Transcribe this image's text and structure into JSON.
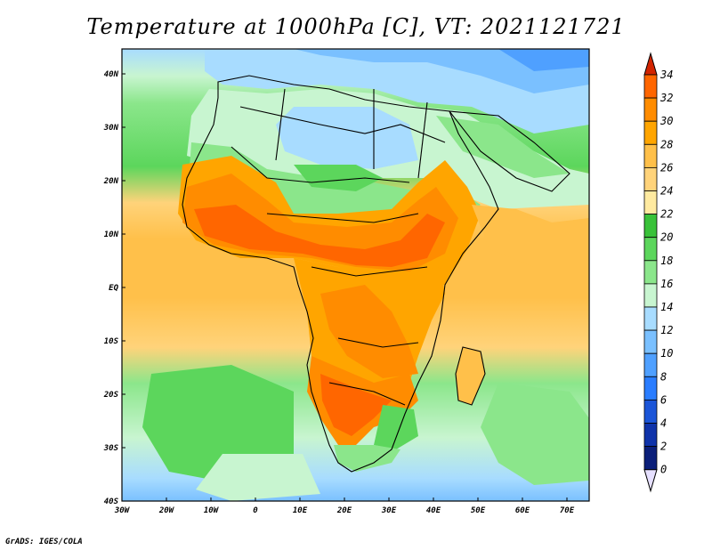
{
  "title": "Temperature at 1000hPa [C], VT: 2021121721",
  "credit": "GrADS: IGES/COLA",
  "map": {
    "lon_range": [
      -30,
      75
    ],
    "lat_range": [
      -40,
      45
    ],
    "lon_ticks": [
      "30W",
      "20W",
      "10W",
      "0",
      "10E",
      "20E",
      "30E",
      "40E",
      "50E",
      "60E",
      "70E"
    ],
    "lat_ticks": [
      "40N",
      "30N",
      "20N",
      "10N",
      "EQ",
      "10S",
      "20S",
      "30S",
      "40S"
    ]
  },
  "colorbar": {
    "labels": [
      "34",
      "32",
      "30",
      "28",
      "26",
      "24",
      "22",
      "20",
      "18",
      "16",
      "14",
      "12",
      "10",
      "8",
      "6",
      "4",
      "2",
      "0"
    ],
    "colors": [
      "#ff6600",
      "#ff8c00",
      "#ffa500",
      "#ffc04a",
      "#ffd37a",
      "#ffeaa0",
      "#39c239",
      "#5cd65c",
      "#8be68b",
      "#c8f5d0",
      "#a8dcff",
      "#7ac0ff",
      "#4fa0ff",
      "#2a7dff",
      "#1b55d8",
      "#0f33aa",
      "#0b1f7a"
    ],
    "top_arrow_color": "#d22400",
    "bottom_arrow_color": "#e6e0ff"
  }
}
